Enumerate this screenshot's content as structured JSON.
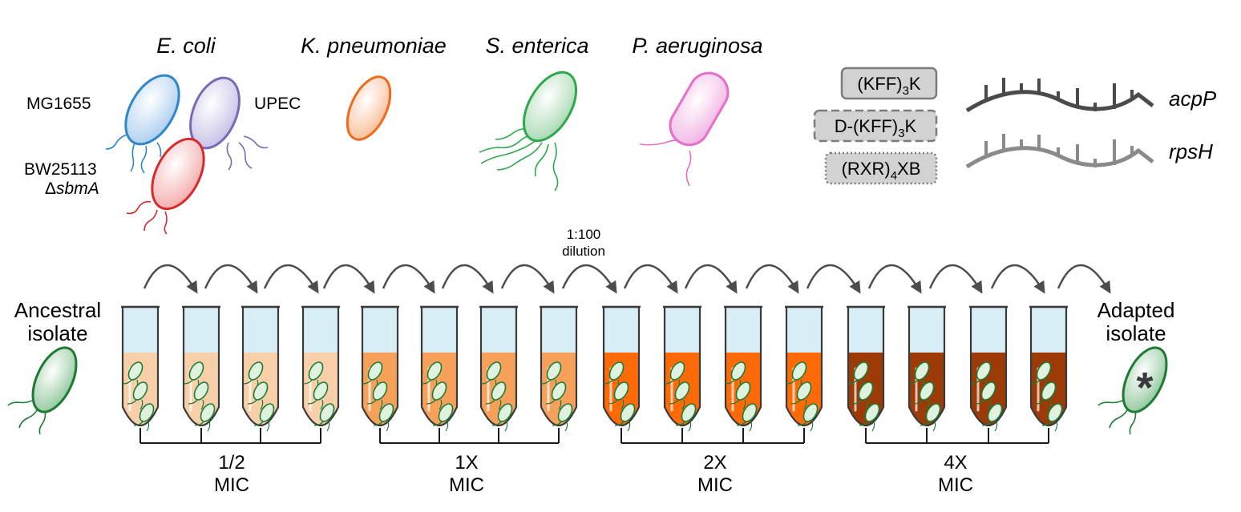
{
  "species": [
    {
      "name": "E. coli"
    },
    {
      "name": "K. pneumoniae"
    },
    {
      "name": "S. enterica"
    },
    {
      "name": "P. aeruginosa"
    }
  ],
  "strains": {
    "mg1655": "MG1655",
    "upec": "UPEC",
    "bw25113_line1": "BW25113",
    "bw25113_delta": "Δ",
    "bw25113_gene": "sbmA"
  },
  "peptides": [
    {
      "pre": "(KFF)",
      "sub": "3",
      "post": "K",
      "border": "solid"
    },
    {
      "pre": "D-(KFF)",
      "sub": "3",
      "post": "K",
      "border": "dashed"
    },
    {
      "pre": "(RXR)",
      "sub": "4",
      "post": "XB",
      "border": "dotted"
    }
  ],
  "targets": [
    {
      "name": "acpP",
      "color": "#4a4a4a"
    },
    {
      "name": "rpsH",
      "color": "#8a8a8a"
    }
  ],
  "dilution": {
    "line1": "1:100",
    "line2": "dilution"
  },
  "ancestral": {
    "line1": "Ancestral",
    "line2": "isolate"
  },
  "adapted": {
    "line1": "Adapted",
    "line2": "isolate",
    "mark": "*"
  },
  "mic_groups": [
    {
      "line1": "1/2",
      "line2": "MIC",
      "color": "#f9cfaa",
      "cell_color": "#dff2dd"
    },
    {
      "line1": "1X",
      "line2": "MIC",
      "color": "#f7a05a",
      "cell_color": "#dff2dd"
    },
    {
      "line1": "2X",
      "line2": "MIC",
      "color": "#ff6a08",
      "cell_color": "#dff2dd"
    },
    {
      "line1": "4X",
      "line2": "MIC",
      "color": "#9c3a08",
      "cell_color": "#dff2dd"
    }
  ],
  "colors": {
    "ecoli_mg1655": "#2f86c8",
    "ecoli_upec": "#7b69b5",
    "ecoli_bw": "#d62b2b",
    "kpneumoniae": "#ee6a1c",
    "senterica": "#2fa84d",
    "paeruginosa": "#e56fc9",
    "isolate": "#1f7a34",
    "arrow": "#4d4d4d",
    "tube_top": "#d8eef6"
  }
}
